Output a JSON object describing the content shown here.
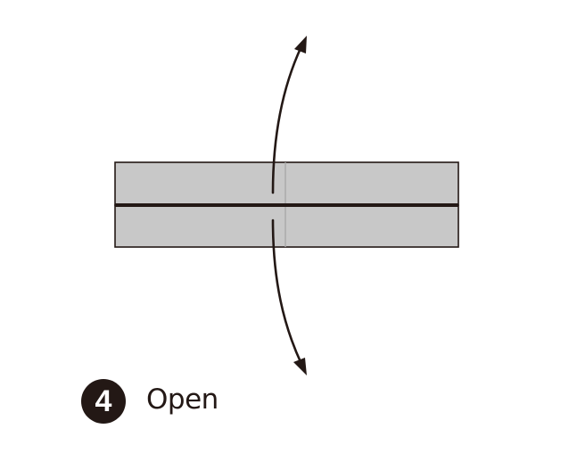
{
  "step": {
    "number": "4",
    "label": "Open"
  },
  "colors": {
    "paper_fill": "#c8c8c8",
    "outline": "#231815",
    "crease": "#a8a8a8",
    "background": "#ffffff"
  },
  "icons": {
    "fold_arrow": "curved-double-arrow-icon"
  }
}
